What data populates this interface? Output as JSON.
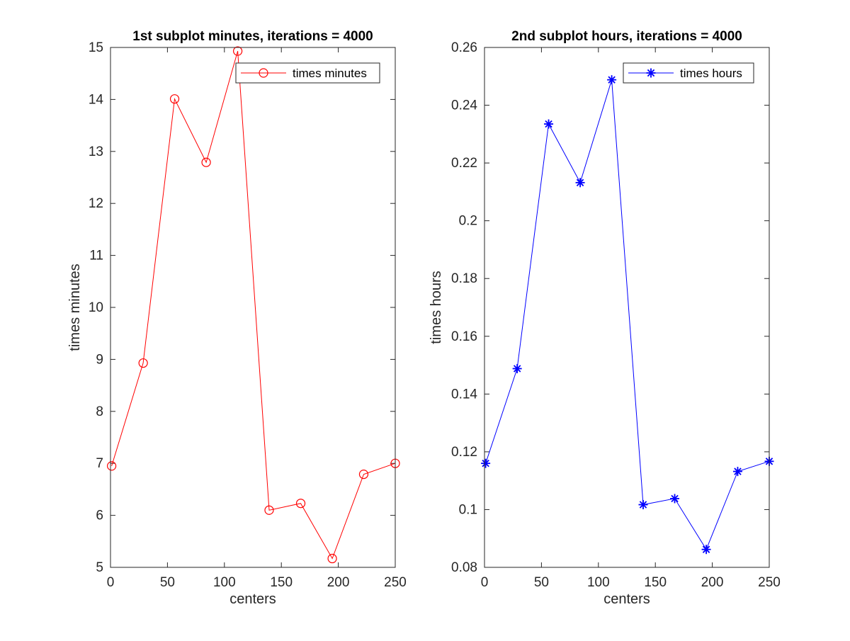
{
  "chart_data": [
    {
      "type": "line",
      "title": "1st subplot minutes, iterations = 4000",
      "xlabel": "centers",
      "ylabel": "times minutes",
      "xlim": [
        0,
        250
      ],
      "ylim": [
        5,
        15
      ],
      "xticks": [
        "0",
        "50",
        "100",
        "150",
        "200",
        "250"
      ],
      "yticks": [
        "5",
        "6",
        "7",
        "8",
        "9",
        "10",
        "11",
        "12",
        "13",
        "14",
        "15"
      ],
      "grid": false,
      "legend_position": "top-right",
      "series": [
        {
          "name": "times minutes",
          "color": "#ff0000",
          "marker": "circle",
          "x": [
            1,
            28.7,
            56.3,
            84,
            111.7,
            139.3,
            167,
            194.7,
            222.3,
            250
          ],
          "y": [
            6.95,
            8.93,
            14.01,
            12.79,
            14.93,
            6.1,
            6.23,
            5.17,
            6.79,
            7.0
          ]
        }
      ]
    },
    {
      "type": "line",
      "title": "2nd subplot hours, iterations = 4000",
      "xlabel": "centers",
      "ylabel": "times hours",
      "xlim": [
        0,
        250
      ],
      "ylim": [
        0.08,
        0.26
      ],
      "xticks": [
        "0",
        "50",
        "100",
        "150",
        "200",
        "250"
      ],
      "yticks": [
        "0.08",
        "0.1",
        "0.12",
        "0.14",
        "0.16",
        "0.18",
        "0.2",
        "0.22",
        "0.24",
        "0.26"
      ],
      "grid": false,
      "legend_position": "top-right",
      "series": [
        {
          "name": "times hours",
          "color": "#0000ff",
          "marker": "asterisk",
          "x": [
            1,
            28.7,
            56.3,
            84,
            111.7,
            139.3,
            167,
            194.7,
            222.3,
            250
          ],
          "y": [
            0.116,
            0.1488,
            0.2335,
            0.2132,
            0.2488,
            0.1017,
            0.1038,
            0.0862,
            0.1132,
            0.1167
          ]
        }
      ]
    }
  ]
}
